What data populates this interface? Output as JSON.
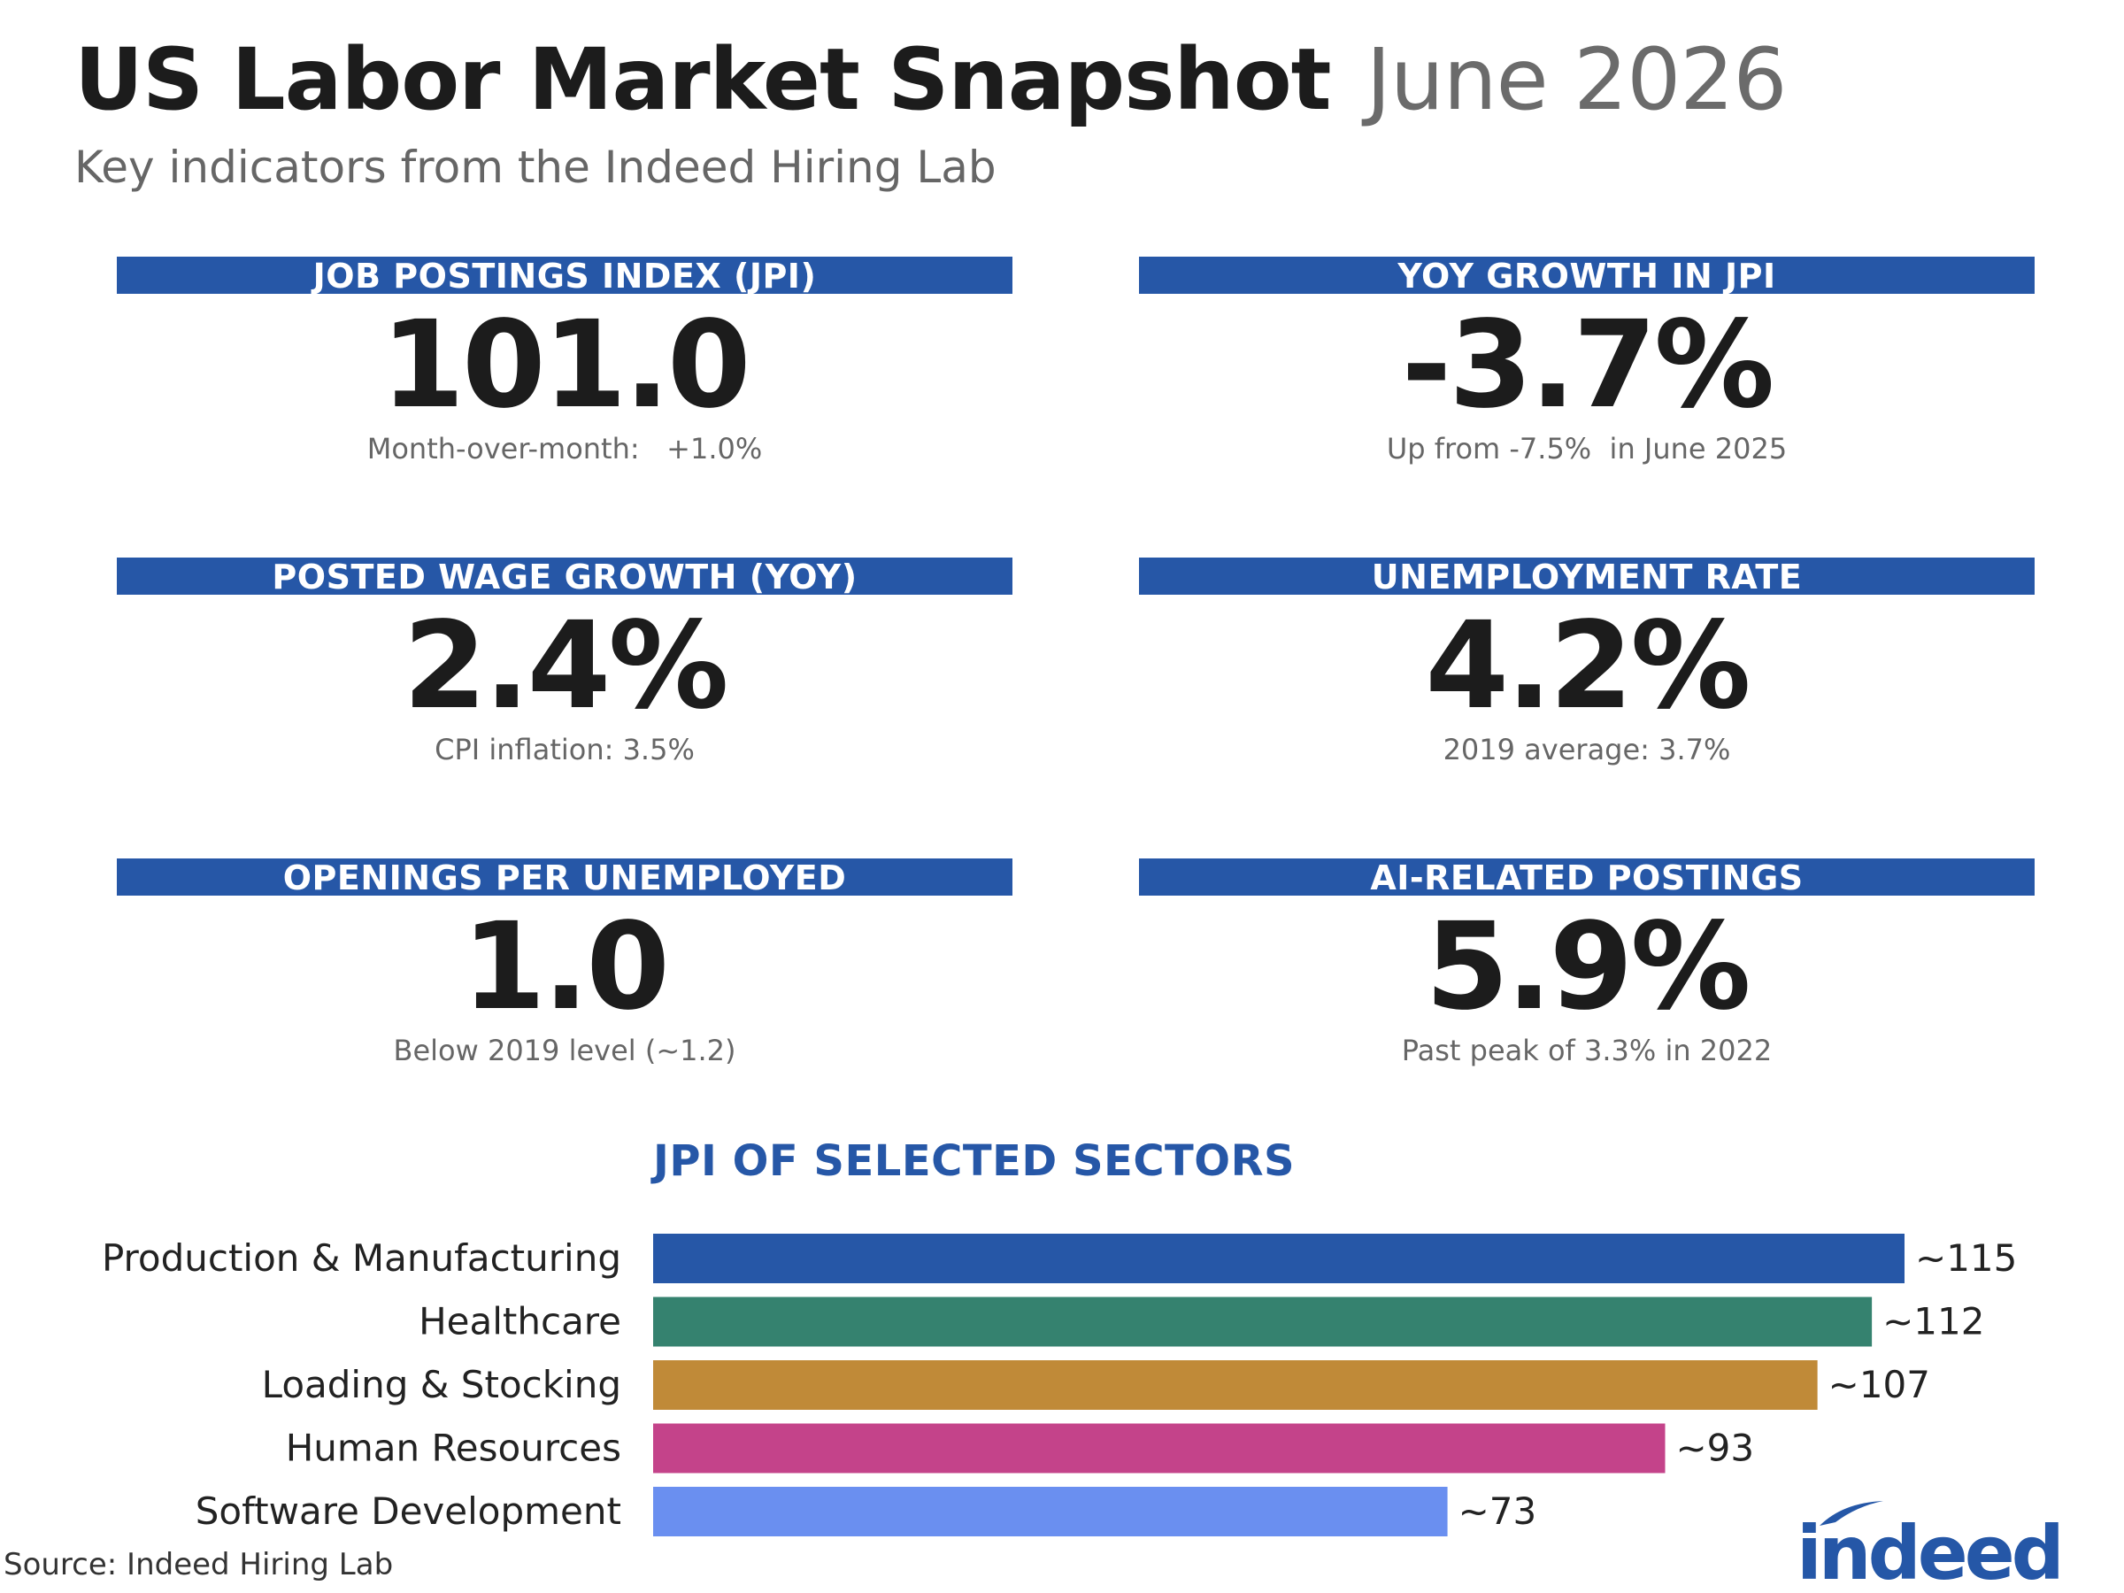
{
  "header": {
    "title": "US Labor Market Snapshot",
    "date": "June 2026",
    "subtitle": "Key indicators from the Indeed Hiring Lab"
  },
  "colors": {
    "header_bar": "#2657a7",
    "sector_title": "#2657a7"
  },
  "cards": [
    {
      "label": "JOB POSTINGS INDEX (JPI)",
      "value": "101.0",
      "note": "Month-over-month:   +1.0%"
    },
    {
      "label": "YOY GROWTH IN JPI",
      "value": "-3.7%",
      "note": "Up from -7.5%  in June 2025"
    },
    {
      "label": "POSTED WAGE GROWTH (YOY)",
      "value": "2.4%",
      "note": "CPI inflation: 3.5%"
    },
    {
      "label": "UNEMPLOYMENT RATE",
      "value": "4.2%",
      "note": "2019 average: 3.7%"
    },
    {
      "label": "OPENINGS PER UNEMPLOYED",
      "value": "1.0",
      "note": "Below 2019 level (~1.2)"
    },
    {
      "label": "AI-RELATED POSTINGS",
      "value": "5.9%",
      "note": "Past peak of 3.3% in 2022"
    }
  ],
  "chart_data": {
    "type": "bar",
    "orientation": "horizontal",
    "title": "JPI OF SELECTED SECTORS",
    "categories": [
      "Production & Manufacturing",
      "Healthcare",
      "Loading & Stocking",
      "Human Resources",
      "Software Development"
    ],
    "values": [
      115,
      112,
      107,
      93,
      73
    ],
    "value_labels": [
      "~115",
      "~112",
      "~107",
      "~93",
      "~73"
    ],
    "colors": [
      "#2657a7",
      "#35826f",
      "#c08a38",
      "#c4438a",
      "#6a8ff0"
    ],
    "xlim": [
      0,
      115
    ]
  },
  "source": "Source: Indeed Hiring Lab",
  "logo": {
    "text": "indeed",
    "color": "#2557a7"
  }
}
